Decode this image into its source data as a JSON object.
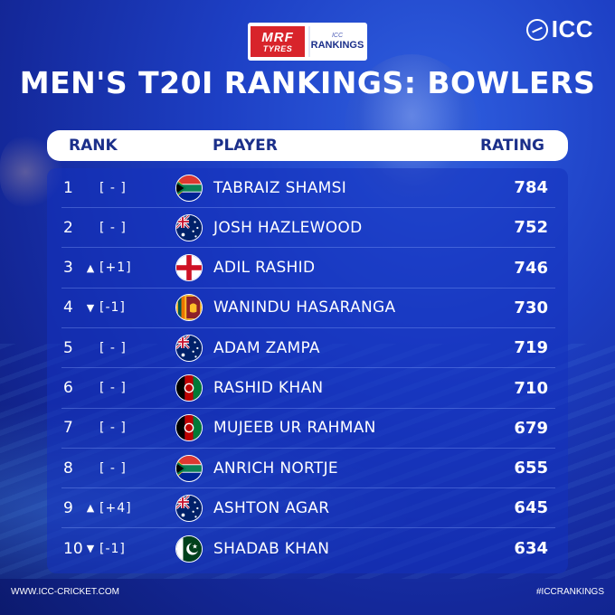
{
  "sponsor": {
    "mrf_line1": "MRF",
    "mrf_line2": "TYRES",
    "rankings_small": "ICC",
    "rankings_big": "RANKINGS"
  },
  "brand": {
    "icc": "ICC"
  },
  "title": "MEN'S T20I RANKINGS: BOWLERS",
  "header": {
    "rank": "RANK",
    "player": "PLAYER",
    "rating": "RATING"
  },
  "rows": [
    {
      "rank": "1",
      "arrow": "",
      "change": "[ - ]",
      "flag": "south-africa-flag",
      "player": "TABRAIZ SHAMSI",
      "rating": "784"
    },
    {
      "rank": "2",
      "arrow": "",
      "change": "[ - ]",
      "flag": "australia-flag",
      "player": "JOSH HAZLEWOOD",
      "rating": "752"
    },
    {
      "rank": "3",
      "arrow": "▲",
      "change": "[+1]",
      "flag": "england-flag",
      "player": "ADIL RASHID",
      "rating": "746"
    },
    {
      "rank": "4",
      "arrow": "▼",
      "change": "[-1]",
      "flag": "sri-lanka-flag",
      "player": "WANINDU HASARANGA",
      "rating": "730"
    },
    {
      "rank": "5",
      "arrow": "",
      "change": "[ - ]",
      "flag": "australia-flag",
      "player": "ADAM ZAMPA",
      "rating": "719"
    },
    {
      "rank": "6",
      "arrow": "",
      "change": "[ - ]",
      "flag": "afghanistan-flag",
      "player": "RASHID KHAN",
      "rating": "710"
    },
    {
      "rank": "7",
      "arrow": "",
      "change": "[ - ]",
      "flag": "afghanistan-flag",
      "player": "MUJEEB UR RAHMAN",
      "rating": "679"
    },
    {
      "rank": "8",
      "arrow": "",
      "change": "[ - ]",
      "flag": "south-africa-flag",
      "player": "ANRICH NORTJE",
      "rating": "655"
    },
    {
      "rank": "9",
      "arrow": "▲",
      "change": "[+4]",
      "flag": "australia-flag",
      "player": "ASHTON AGAR",
      "rating": "645"
    },
    {
      "rank": "10",
      "arrow": "▼",
      "change": "[-1]",
      "flag": "pakistan-flag",
      "player": "SHADAB KHAN",
      "rating": "634"
    }
  ],
  "footer": {
    "website": "WWW.ICC-CRICKET.COM",
    "hashtag": "#ICCRANKINGS"
  },
  "colors": {
    "background": "#1d3fc4",
    "header_text": "#1b2f8a",
    "mrf_red": "#d8242b"
  }
}
